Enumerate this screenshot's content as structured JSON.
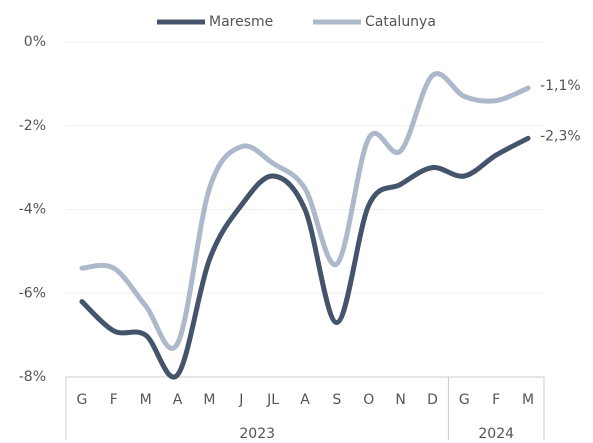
{
  "chart_data": {
    "type": "line",
    "categories": [
      "G",
      "F",
      "M",
      "A",
      "M",
      "J",
      "JL",
      "A",
      "S",
      "O",
      "N",
      "D",
      "G",
      "F",
      "M"
    ],
    "years": [
      "2023",
      "2023",
      "2023",
      "2023",
      "2023",
      "2023",
      "2023",
      "2023",
      "2023",
      "2023",
      "2023",
      "2023",
      "2024",
      "2024",
      "2024"
    ],
    "series": [
      {
        "name": "Maresme",
        "color": "#44546a",
        "values": [
          -6.2,
          -6.9,
          -7.0,
          -7.95,
          -5.2,
          -3.9,
          -3.2,
          -4.0,
          -6.7,
          -3.9,
          -3.4,
          -3.0,
          -3.2,
          -2.7,
          -2.3
        ],
        "value_labels": [
          null,
          null,
          null,
          null,
          null,
          null,
          null,
          null,
          null,
          null,
          null,
          null,
          null,
          null,
          "-2,3%"
        ]
      },
      {
        "name": "Catalunya",
        "color": "#adb9ca",
        "values": [
          -5.4,
          -5.4,
          -6.3,
          -7.2,
          -3.5,
          -2.5,
          -2.9,
          -3.5,
          -5.3,
          -2.3,
          -2.6,
          -0.8,
          -1.3,
          -1.4,
          -1.1
        ],
        "value_labels": [
          null,
          null,
          null,
          null,
          null,
          null,
          null,
          null,
          null,
          null,
          null,
          null,
          null,
          null,
          "-1,1%"
        ]
      }
    ],
    "ylim": [
      -8,
      0
    ],
    "yticks": [
      {
        "value": 0,
        "label": "0%"
      },
      {
        "value": -2,
        "label": "-2%"
      },
      {
        "value": -4,
        "label": "-4%"
      },
      {
        "value": -6,
        "label": "-6%"
      },
      {
        "value": -8,
        "label": "-8%"
      }
    ],
    "grid": true,
    "legend": "top"
  }
}
